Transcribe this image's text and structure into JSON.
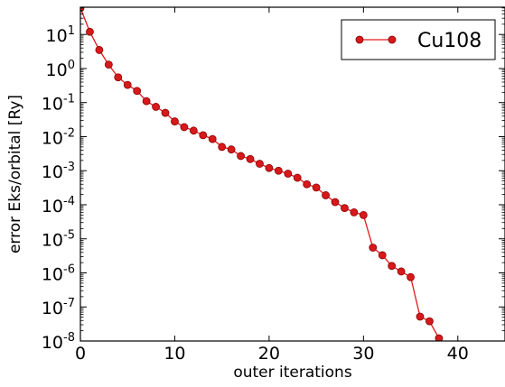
{
  "chart_data": {
    "type": "line",
    "xlabel": "outer iterations",
    "ylabel": "error Eks/orbital [Ry]",
    "xlim": [
      0,
      45
    ],
    "ylim_exponents": [
      -8,
      1.8
    ],
    "y_scale": "log",
    "x_ticks": [
      {
        "value": 0,
        "label": "0"
      },
      {
        "value": 10,
        "label": "10"
      },
      {
        "value": 20,
        "label": "20"
      },
      {
        "value": 30,
        "label": "30"
      },
      {
        "value": 40,
        "label": "40"
      }
    ],
    "y_ticks": [
      {
        "exp": 1,
        "label": "10",
        "sup": "1"
      },
      {
        "exp": 0,
        "label": "10",
        "sup": "0"
      },
      {
        "exp": -1,
        "label": "10",
        "sup": "-1"
      },
      {
        "exp": -2,
        "label": "10",
        "sup": "-2"
      },
      {
        "exp": -3,
        "label": "10",
        "sup": "-3"
      },
      {
        "exp": -4,
        "label": "10",
        "sup": "-4"
      },
      {
        "exp": -5,
        "label": "10",
        "sup": "-5"
      },
      {
        "exp": -6,
        "label": "10",
        "sup": "-6"
      },
      {
        "exp": -7,
        "label": "10",
        "sup": "-7"
      },
      {
        "exp": -8,
        "label": "10",
        "sup": "-8"
      }
    ],
    "legend": {
      "placement": "top-right",
      "label": "Cu108"
    },
    "series": [
      {
        "name": "Cu108",
        "color": "#e41a1c",
        "x": [
          0,
          1,
          2,
          3,
          4,
          5,
          6,
          7,
          8,
          9,
          10,
          11,
          12,
          13,
          14,
          15,
          16,
          17,
          18,
          19,
          20,
          21,
          22,
          23,
          24,
          25,
          26,
          27,
          28,
          29,
          30,
          31,
          32,
          33,
          34,
          35,
          36,
          37,
          38
        ],
        "y": [
          60,
          12,
          3.5,
          1.3,
          0.55,
          0.33,
          0.22,
          0.11,
          0.075,
          0.05,
          0.028,
          0.019,
          0.015,
          0.011,
          0.0085,
          0.005,
          0.0042,
          0.0027,
          0.0022,
          0.0016,
          0.0012,
          0.001,
          0.00082,
          0.00062,
          0.0004,
          0.00032,
          0.00019,
          0.00012,
          8e-05,
          6e-05,
          5e-05,
          5.5e-06,
          3.3e-06,
          1.6e-06,
          1.1e-06,
          7.5e-07,
          5.2e-08,
          3.8e-08,
          1.2e-08
        ]
      }
    ]
  }
}
